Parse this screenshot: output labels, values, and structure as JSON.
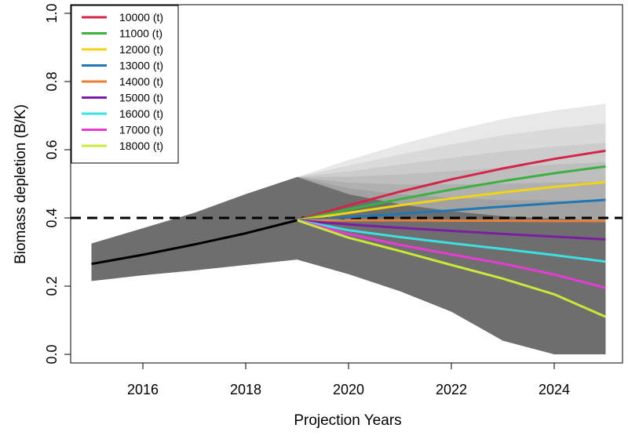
{
  "chart_data": {
    "type": "line",
    "xlabel": "Projection Years",
    "ylabel": "Biomass depletion (B/K)",
    "xlim": [
      2014.6,
      2025.5
    ],
    "ylim": [
      0.0,
      1.0
    ],
    "xticks": [
      2016,
      2018,
      2020,
      2022,
      2024
    ],
    "yticks": [
      0.0,
      0.2,
      0.4,
      0.6,
      0.8,
      1.0
    ],
    "ytick_labels": [
      "0.0",
      "0.2",
      "0.4",
      "0.6",
      "0.8",
      "1.0"
    ],
    "reference_line": {
      "y": 0.4,
      "style": "dashed",
      "color": "#000000"
    },
    "legend_position": "top-left",
    "historical": {
      "x": [
        2015,
        2016,
        2017,
        2018,
        2019
      ],
      "y": [
        0.265,
        0.292,
        0.322,
        0.355,
        0.393
      ],
      "color": "#000000",
      "band_upper": [
        0.325,
        0.37,
        0.415,
        0.47,
        0.52
      ],
      "band_lower": [
        0.215,
        0.232,
        0.246,
        0.262,
        0.278
      ],
      "band_color": "#6e6e6e"
    },
    "projection_x": [
      2019,
      2020,
      2021,
      2022,
      2023,
      2024,
      2025
    ],
    "projection_band": {
      "upper": [
        0.52,
        0.57,
        0.615,
        0.655,
        0.69,
        0.715,
        0.735
      ],
      "lower": [
        0.278,
        0.235,
        0.185,
        0.125,
        0.04,
        0.0,
        0.0
      ],
      "dark_upper": [
        0.52,
        0.47,
        0.44,
        0.42,
        0.405,
        0.398,
        0.392
      ],
      "color_dark": "#6e6e6e",
      "color_light": "#e6e6e6"
    },
    "series": [
      {
        "name": "10000 (t)",
        "color": "#d6234a",
        "values": [
          0.393,
          0.437,
          0.477,
          0.513,
          0.545,
          0.573,
          0.597
        ]
      },
      {
        "name": "11000 (t)",
        "color": "#3cb043",
        "values": [
          0.393,
          0.425,
          0.455,
          0.483,
          0.508,
          0.531,
          0.551
        ]
      },
      {
        "name": "12000 (t)",
        "color": "#f0d418",
        "values": [
          0.393,
          0.415,
          0.437,
          0.457,
          0.475,
          0.491,
          0.505
        ]
      },
      {
        "name": "13000 (t)",
        "color": "#1f77b4",
        "values": [
          0.393,
          0.402,
          0.412,
          0.422,
          0.433,
          0.443,
          0.453
        ]
      },
      {
        "name": "14000 (t)",
        "color": "#e6803a",
        "values": [
          0.393,
          0.393,
          0.393,
          0.392,
          0.392,
          0.391,
          0.391
        ]
      },
      {
        "name": "15000 (t)",
        "color": "#7b1fa2",
        "values": [
          0.393,
          0.381,
          0.371,
          0.362,
          0.353,
          0.345,
          0.337
        ]
      },
      {
        "name": "16000 (t)",
        "color": "#3de0e0",
        "values": [
          0.393,
          0.364,
          0.344,
          0.326,
          0.309,
          0.291,
          0.272
        ]
      },
      {
        "name": "17000 (t)",
        "color": "#e83ad6",
        "values": [
          0.393,
          0.353,
          0.321,
          0.293,
          0.266,
          0.234,
          0.195
        ]
      },
      {
        "name": "18000 (t)",
        "color": "#c8e83a",
        "values": [
          0.393,
          0.342,
          0.303,
          0.262,
          0.222,
          0.176,
          0.11
        ]
      }
    ]
  }
}
